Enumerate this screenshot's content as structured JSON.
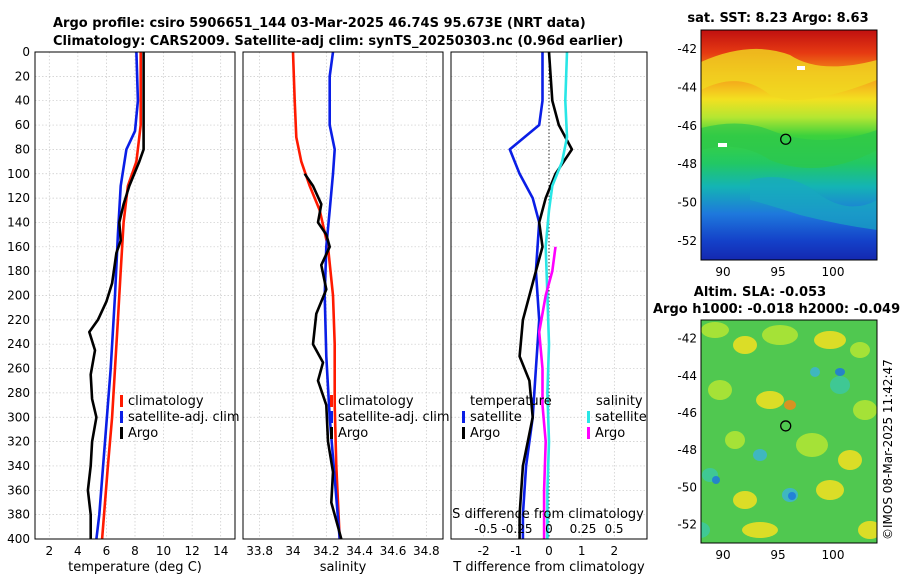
{
  "title": {
    "line1": "Argo profile: csiro 5906651_144 03-Mar-2025 46.74S 95.673E (NRT data)",
    "line2": "Climatology: CARS2009. Satellite-adj clim: synTS_20250303.nc (0.96d earlier)"
  },
  "colors": {
    "climatology": "#ff1a00",
    "satellite": "#0a1ee6",
    "argo": "#000000",
    "satellite_salt": "#28e6e6",
    "argo_salt": "#ff00ff"
  },
  "chart_data": [
    {
      "type": "line",
      "id": "temperature",
      "xlabel": "temperature (deg C)",
      "ylabel": "",
      "xlim": [
        1,
        15
      ],
      "ylim": [
        400,
        0
      ],
      "xticks": [
        2,
        4,
        6,
        8,
        10,
        12,
        14
      ],
      "yticks": [
        0,
        20,
        40,
        60,
        80,
        100,
        120,
        140,
        160,
        180,
        200,
        220,
        240,
        260,
        280,
        300,
        320,
        340,
        360,
        380,
        400
      ],
      "legend": [
        "climatology",
        "satellite-adj. clim",
        "Argo"
      ],
      "series": [
        {
          "name": "climatology",
          "color": "#ff1a00",
          "points": [
            [
              8.4,
              0
            ],
            [
              8.4,
              60
            ],
            [
              8.1,
              90
            ],
            [
              7.5,
              110
            ],
            [
              7.2,
              140
            ],
            [
              7.0,
              180
            ],
            [
              6.8,
              220
            ],
            [
              6.6,
              260
            ],
            [
              6.4,
              300
            ],
            [
              6.1,
              340
            ],
            [
              5.9,
              370
            ],
            [
              5.7,
              400
            ]
          ]
        },
        {
          "name": "satellite-adj. clim",
          "color": "#0a1ee6",
          "points": [
            [
              8.1,
              0
            ],
            [
              8.2,
              40
            ],
            [
              8.0,
              65
            ],
            [
              7.4,
              80
            ],
            [
              7.0,
              110
            ],
            [
              6.8,
              150
            ],
            [
              6.6,
              200
            ],
            [
              6.3,
              260
            ],
            [
              5.9,
              320
            ],
            [
              5.5,
              380
            ],
            [
              5.3,
              400
            ]
          ]
        },
        {
          "name": "Argo",
          "color": "#000000",
          "points": [
            [
              8.6,
              0
            ],
            [
              8.6,
              80
            ],
            [
              8.3,
              90
            ],
            [
              7.6,
              110
            ],
            [
              7.2,
              125
            ],
            [
              6.9,
              140
            ],
            [
              7.0,
              155
            ],
            [
              6.7,
              165
            ],
            [
              6.4,
              190
            ],
            [
              6.0,
              205
            ],
            [
              5.4,
              220
            ],
            [
              4.8,
              230
            ],
            [
              5.2,
              245
            ],
            [
              4.9,
              265
            ],
            [
              5.0,
              285
            ],
            [
              5.3,
              300
            ],
            [
              5.0,
              320
            ],
            [
              4.9,
              340
            ],
            [
              4.7,
              360
            ],
            [
              4.9,
              380
            ],
            [
              4.9,
              400
            ]
          ]
        }
      ]
    },
    {
      "type": "line",
      "id": "salinity",
      "xlabel": "salinity",
      "ylabel": "",
      "xlim": [
        33.7,
        34.9
      ],
      "ylim": [
        400,
        0
      ],
      "xticks": [
        33.8,
        34,
        34.2,
        34.4,
        34.6,
        34.8
      ],
      "legend": [
        "climatology",
        "satellite-adj. clim",
        "Argo"
      ],
      "series": [
        {
          "name": "climatology",
          "color": "#ff1a00",
          "points": [
            [
              34.0,
              0
            ],
            [
              34.01,
              40
            ],
            [
              34.02,
              70
            ],
            [
              34.05,
              90
            ],
            [
              34.1,
              110
            ],
            [
              34.16,
              130
            ],
            [
              34.21,
              160
            ],
            [
              34.24,
              200
            ],
            [
              34.25,
              240
            ],
            [
              34.25,
              290
            ],
            [
              34.26,
              340
            ],
            [
              34.28,
              400
            ]
          ]
        },
        {
          "name": "satellite-adj. clim",
          "color": "#0a1ee6",
          "points": [
            [
              34.24,
              0
            ],
            [
              34.22,
              20
            ],
            [
              34.22,
              60
            ],
            [
              34.25,
              80
            ],
            [
              34.24,
              100
            ],
            [
              34.22,
              130
            ],
            [
              34.2,
              160
            ],
            [
              34.19,
              200
            ],
            [
              34.2,
              250
            ],
            [
              34.22,
              300
            ],
            [
              34.25,
              350
            ],
            [
              34.28,
              400
            ]
          ]
        },
        {
          "name": "Argo",
          "color": "#000000",
          "points": [
            [
              34.07,
              100
            ],
            [
              34.12,
              110
            ],
            [
              34.17,
              125
            ],
            [
              34.15,
              140
            ],
            [
              34.2,
              150
            ],
            [
              34.22,
              160
            ],
            [
              34.17,
              175
            ],
            [
              34.2,
              195
            ],
            [
              34.14,
              215
            ],
            [
              34.12,
              240
            ],
            [
              34.18,
              255
            ],
            [
              34.15,
              270
            ],
            [
              34.2,
              290
            ],
            [
              34.21,
              320
            ],
            [
              34.24,
              345
            ],
            [
              34.23,
              370
            ],
            [
              34.27,
              390
            ],
            [
              34.29,
              400
            ]
          ]
        }
      ]
    },
    {
      "type": "line",
      "id": "difference",
      "xlabel": "T difference from climatology",
      "xlabel2": "S difference from climatology",
      "xlim": [
        -3,
        3
      ],
      "ylim": [
        400,
        0
      ],
      "xticks": [
        -2,
        -1,
        0,
        1,
        2
      ],
      "s_ticks_text": [
        "-0.5",
        "-0.25",
        "0",
        "0.25",
        "0.5"
      ],
      "legend_headers": [
        "temperature",
        "salinity"
      ],
      "legend": [
        "satellite",
        "Argo",
        "satellite",
        "Argo"
      ],
      "series": [
        {
          "name": "temperature satellite",
          "color": "#0a1ee6",
          "points": [
            [
              -0.2,
              0
            ],
            [
              -0.2,
              40
            ],
            [
              -0.3,
              60
            ],
            [
              -1.2,
              80
            ],
            [
              -0.9,
              100
            ],
            [
              -0.5,
              120
            ],
            [
              -0.3,
              140
            ],
            [
              -0.4,
              180
            ],
            [
              -0.3,
              220
            ],
            [
              -0.4,
              260
            ],
            [
              -0.5,
              300
            ],
            [
              -0.7,
              340
            ],
            [
              -0.8,
              380
            ],
            [
              -0.8,
              400
            ]
          ]
        },
        {
          "name": "temperature Argo",
          "color": "#000000",
          "points": [
            [
              0.0,
              0
            ],
            [
              0.1,
              40
            ],
            [
              0.3,
              60
            ],
            [
              0.7,
              80
            ],
            [
              0.2,
              100
            ],
            [
              -0.1,
              120
            ],
            [
              -0.3,
              140
            ],
            [
              -0.2,
              160
            ],
            [
              -0.4,
              180
            ],
            [
              -0.8,
              220
            ],
            [
              -0.9,
              250
            ],
            [
              -0.6,
              270
            ],
            [
              -0.5,
              300
            ],
            [
              -0.8,
              340
            ],
            [
              -0.9,
              380
            ],
            [
              -0.9,
              400
            ]
          ]
        },
        {
          "name": "salinity satellite",
          "color": "#28e6e6",
          "points": [
            [
              0.55,
              0
            ],
            [
              0.5,
              40
            ],
            [
              0.55,
              70
            ],
            [
              0.4,
              90
            ],
            [
              0.1,
              110
            ],
            [
              0.0,
              130
            ],
            [
              -0.1,
              160
            ],
            [
              -0.05,
              200
            ],
            [
              0.0,
              240
            ],
            [
              -0.05,
              280
            ],
            [
              0.0,
              320
            ],
            [
              -0.05,
              360
            ],
            [
              -0.05,
              400
            ]
          ]
        },
        {
          "name": "salinity Argo",
          "color": "#ff00ff",
          "points": [
            [
              0.2,
              160
            ],
            [
              0.1,
              180
            ],
            [
              -0.1,
              200
            ],
            [
              -0.3,
              230
            ],
            [
              -0.2,
              260
            ],
            [
              -0.2,
              290
            ],
            [
              -0.1,
              320
            ],
            [
              -0.15,
              360
            ],
            [
              -0.15,
              400
            ]
          ]
        }
      ]
    },
    {
      "type": "heatmap",
      "id": "sst",
      "title": "sat. SST: 8.23 Argo: 8.63",
      "xlim": [
        88,
        104
      ],
      "ylim": [
        -53,
        -41
      ],
      "xticks": [
        90,
        95,
        100
      ],
      "yticks": [
        -42,
        -44,
        -46,
        -48,
        -50,
        -52
      ],
      "marker": [
        95.7,
        -46.7
      ]
    },
    {
      "type": "heatmap",
      "id": "sla",
      "title": "Altim. SLA: -0.053",
      "title2": "Argo h1000: -0.018 h2000: -0.049",
      "xlim": [
        88,
        104
      ],
      "ylim": [
        -53,
        -41
      ],
      "xticks": [
        90,
        95,
        100
      ],
      "yticks": [
        -42,
        -44,
        -46,
        -48,
        -50,
        -52
      ],
      "marker": [
        95.7,
        -46.7
      ],
      "side_label": "©IMOS 08-Mar-2025 11:42:47"
    }
  ]
}
